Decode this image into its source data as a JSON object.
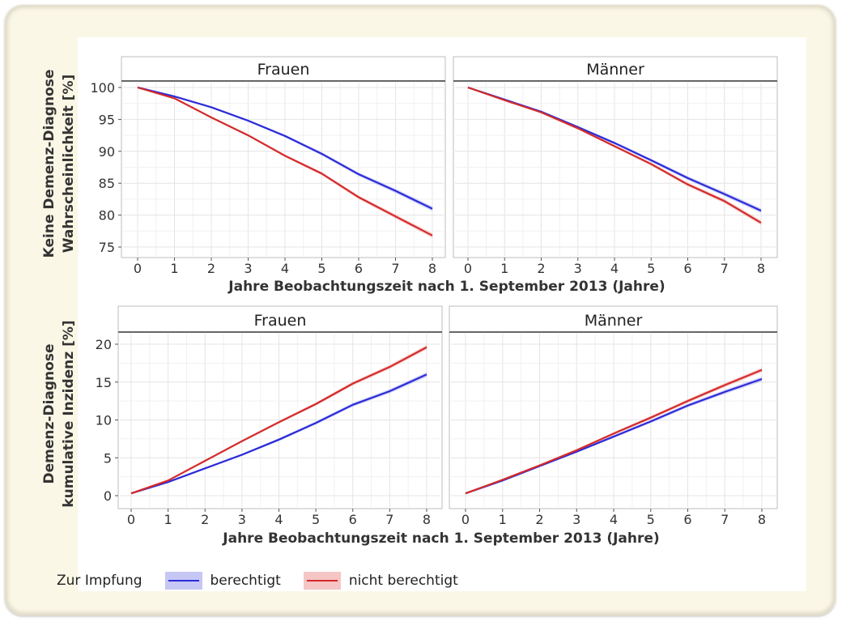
{
  "chart_data": [
    {
      "type": "line",
      "panel": "Frauen",
      "ylabel": [
        "Keine Demenz-Diagnose",
        "Wahrscheinlichkeit [%]"
      ],
      "xlabel": "Jahre Beobachtungszeit nach 1. September 2013 (Jahre)",
      "xlim": [
        0,
        8
      ],
      "ylim": [
        75,
        100
      ],
      "xticks": [
        0,
        1,
        2,
        3,
        4,
        5,
        6,
        7,
        8
      ],
      "yticks": [
        75,
        80,
        85,
        90,
        95,
        100
      ],
      "x": [
        0,
        1,
        2,
        3,
        4,
        5,
        6,
        7,
        8
      ],
      "series": [
        {
          "name": "berechtigt",
          "color": "#2b2bd8",
          "values": [
            100,
            98.6,
            96.9,
            94.8,
            92.4,
            89.6,
            86.4,
            83.8,
            81.0
          ]
        },
        {
          "name": "nicht berechtigt",
          "color": "#d42a2a",
          "values": [
            100,
            98.3,
            95.3,
            92.5,
            89.3,
            86.5,
            82.8,
            79.8,
            76.8
          ]
        }
      ]
    },
    {
      "type": "line",
      "panel": "Männer",
      "xlabel": "Jahre Beobachtungszeit nach 1. September 2013 (Jahre)",
      "xlim": [
        0,
        8
      ],
      "ylim": [
        75,
        100
      ],
      "xticks": [
        0,
        1,
        2,
        3,
        4,
        5,
        6,
        7,
        8
      ],
      "x": [
        0,
        1,
        2,
        3,
        4,
        5,
        6,
        7,
        8
      ],
      "series": [
        {
          "name": "berechtigt",
          "color": "#2b2bd8",
          "values": [
            100,
            98.1,
            96.2,
            93.8,
            91.3,
            88.6,
            85.8,
            83.3,
            80.7
          ]
        },
        {
          "name": "nicht berechtigt",
          "color": "#d42a2a",
          "values": [
            100,
            98.0,
            96.1,
            93.6,
            90.8,
            88.0,
            84.8,
            82.2,
            78.8
          ]
        }
      ]
    },
    {
      "type": "line",
      "panel": "Frauen",
      "ylabel": [
        "Demenz-Diagnose",
        "kumulative Inzidenz  [%]"
      ],
      "xlabel": "Jahre Beobachtungszeit nach 1. September 2013 (Jahre)",
      "xlim": [
        0,
        8
      ],
      "ylim": [
        0,
        20
      ],
      "xticks": [
        0,
        1,
        2,
        3,
        4,
        5,
        6,
        7,
        8
      ],
      "yticks": [
        0,
        5,
        10,
        15,
        20
      ],
      "x": [
        0,
        1,
        2,
        3,
        4,
        5,
        6,
        7,
        8
      ],
      "series": [
        {
          "name": "berechtigt",
          "color": "#2b2bd8",
          "values": [
            0.3,
            1.8,
            3.6,
            5.4,
            7.4,
            9.6,
            12.0,
            13.8,
            16.0
          ]
        },
        {
          "name": "nicht berechtigt",
          "color": "#d42a2a",
          "values": [
            0.3,
            2.0,
            4.6,
            7.2,
            9.7,
            12.1,
            14.8,
            17.0,
            19.6
          ]
        }
      ]
    },
    {
      "type": "line",
      "panel": "Männer",
      "xlabel": "Jahre Beobachtungszeit nach 1. September 2013 (Jahre)",
      "xlim": [
        0,
        8
      ],
      "ylim": [
        0,
        20
      ],
      "xticks": [
        0,
        1,
        2,
        3,
        4,
        5,
        6,
        7,
        8
      ],
      "x": [
        0,
        1,
        2,
        3,
        4,
        5,
        6,
        7,
        8
      ],
      "series": [
        {
          "name": "berechtigt",
          "color": "#2b2bd8",
          "values": [
            0.3,
            2.0,
            3.9,
            5.8,
            7.8,
            9.8,
            11.9,
            13.7,
            15.4
          ]
        },
        {
          "name": "nicht berechtigt",
          "color": "#d42a2a",
          "values": [
            0.3,
            2.1,
            4.0,
            6.0,
            8.2,
            10.3,
            12.5,
            14.6,
            16.6
          ]
        }
      ]
    }
  ],
  "legend": {
    "title": "Zur Impfung",
    "items": [
      {
        "label": "berechtigt",
        "color": "#2b2bd8",
        "band": "#c7c7f5"
      },
      {
        "label": "nicht berechtigt",
        "color": "#d42a2a",
        "band": "#f6c5c5"
      }
    ]
  }
}
